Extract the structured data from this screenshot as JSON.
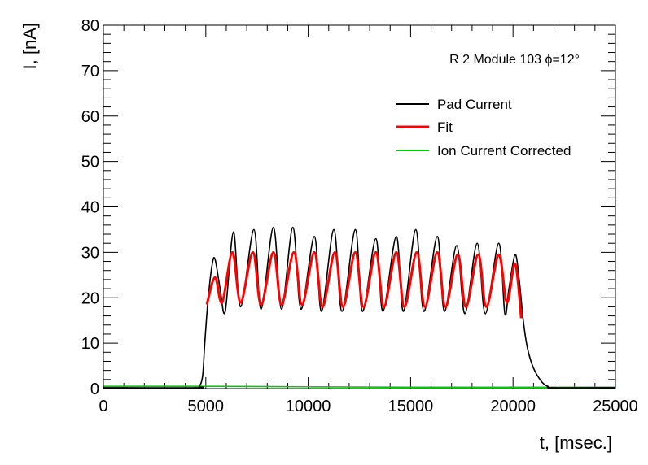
{
  "chart_data": {
    "type": "line",
    "title": "",
    "annotation": "R 2 Module 103 ϕ=12°",
    "xlabel": "t, [msec.]",
    "ylabel": "I, [nA]",
    "xlim": [
      0,
      25000
    ],
    "ylim": [
      0,
      80
    ],
    "xticks": [
      0,
      5000,
      10000,
      15000,
      20000,
      25000
    ],
    "xtick_labels": [
      "0",
      "5000",
      "10000",
      "15000",
      "20000",
      "25000"
    ],
    "yticks": [
      0,
      10,
      20,
      30,
      40,
      50,
      60,
      70,
      80
    ],
    "ytick_labels": [
      "0",
      "10",
      "20",
      "30",
      "40",
      "50",
      "60",
      "70",
      "80"
    ],
    "grid": false,
    "legend_position": "top-right",
    "series": [
      {
        "name": "Pad Current",
        "color": "#000000",
        "x": [
          0,
          4500,
          4700,
          4850,
          4950,
          5100,
          5300,
          5450,
          5700,
          5950,
          6350,
          6700,
          7350,
          7700,
          8300,
          8700,
          9250,
          9650,
          10300,
          10650,
          11250,
          11650,
          12300,
          12650,
          13300,
          13650,
          14300,
          14650,
          15250,
          15650,
          16300,
          16650,
          17250,
          17650,
          18250,
          18650,
          19300,
          19600,
          19800,
          20100,
          20300,
          20500,
          20700,
          21000,
          21400,
          21700,
          22000,
          25000
        ],
        "y": [
          0.2,
          0.2,
          0.6,
          3,
          10,
          19,
          27,
          28.5,
          22,
          17,
          34.5,
          18,
          35,
          17.5,
          35.5,
          17.5,
          35.5,
          17.5,
          33.5,
          17,
          35,
          17,
          35,
          17,
          33,
          17,
          33.5,
          17,
          35,
          17,
          33.5,
          17,
          31.5,
          16.5,
          32,
          16.5,
          32,
          16.5,
          22,
          29.5,
          24,
          15,
          9,
          4.5,
          1.5,
          0.5,
          0.2,
          0.2
        ]
      },
      {
        "name": "Fit",
        "color": "#ff0000",
        "x": [
          5050,
          5450,
          5800,
          6300,
          6700,
          7300,
          7700,
          8300,
          8700,
          9300,
          9700,
          10300,
          10700,
          11300,
          11700,
          12300,
          12700,
          13300,
          13700,
          14300,
          14700,
          15300,
          15700,
          16300,
          16700,
          17300,
          17700,
          18300,
          18700,
          19300,
          19700,
          20100,
          20400
        ],
        "y": [
          18.5,
          24.5,
          19,
          30,
          19,
          30,
          18.5,
          30,
          18.5,
          30,
          18.5,
          30,
          18,
          30,
          18,
          30,
          18,
          30,
          18,
          30,
          18,
          30,
          18,
          30,
          18,
          29.5,
          18,
          29.5,
          18,
          29.5,
          19,
          27.5,
          15.5
        ]
      },
      {
        "name": "Ion Current Corrected",
        "color": "#00cc00",
        "x": [
          0,
          5000,
          10000,
          15000,
          20000,
          25000
        ],
        "y": [
          0.5,
          0.5,
          0.4,
          0.3,
          0.3,
          0.3
        ]
      }
    ]
  }
}
